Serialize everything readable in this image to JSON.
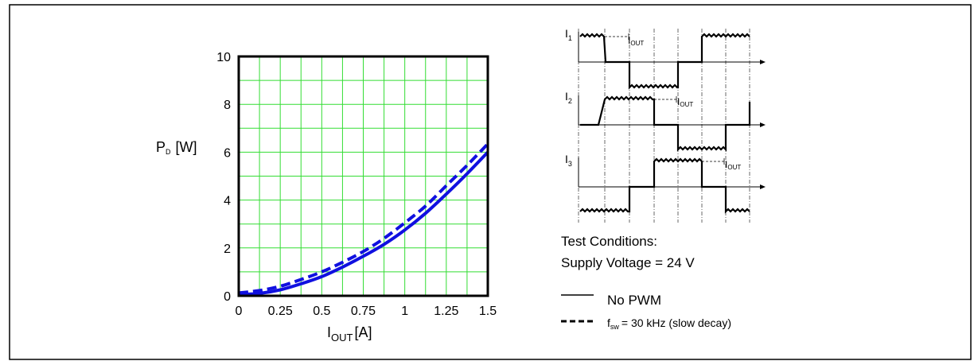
{
  "chart_data": {
    "type": "line",
    "ylabel": {
      "main": "P",
      "sub": "D",
      "unit": "[W]"
    },
    "xlabel": {
      "main": "I",
      "sub": "OUT",
      "unit": "[A]"
    },
    "xlim": [
      0,
      1.5
    ],
    "ylim": [
      0,
      10
    ],
    "x_ticks": [
      "0",
      "0.25",
      "0.5",
      "0.75",
      "1",
      "1.25",
      "1.5"
    ],
    "y_ticks": [
      "0",
      "2",
      "4",
      "6",
      "8",
      "10"
    ],
    "grid": true,
    "series": [
      {
        "name": "No PWM",
        "line_style": "solid",
        "color": "#1010e0",
        "x": [
          0,
          0.125,
          0.25,
          0.375,
          0.5,
          0.625,
          0.75,
          0.875,
          1.0,
          1.125,
          1.25,
          1.375,
          1.5
        ],
        "y": [
          0.05,
          0.1,
          0.25,
          0.5,
          0.8,
          1.2,
          1.65,
          2.15,
          2.75,
          3.45,
          4.25,
          5.1,
          6.0
        ]
      },
      {
        "name": "f_sw = 30 kHz (slow decay)",
        "line_style": "dashed",
        "color": "#1010e0",
        "x": [
          0,
          0.125,
          0.25,
          0.375,
          0.5,
          0.625,
          0.75,
          0.875,
          1.0,
          1.125,
          1.25,
          1.375,
          1.5
        ],
        "y": [
          0.12,
          0.22,
          0.4,
          0.68,
          1.0,
          1.4,
          1.85,
          2.4,
          3.05,
          3.75,
          4.6,
          5.45,
          6.35
        ]
      }
    ]
  },
  "waveform_diagram": {
    "phases": [
      {
        "label_main": "I",
        "label_sub": "1",
        "iout_main": "I",
        "iout_sub": "OUT"
      },
      {
        "label_main": "I",
        "label_sub": "2",
        "iout_main": "I",
        "iout_sub": "OUT"
      },
      {
        "label_main": "I",
        "label_sub": "3",
        "iout_main": "I",
        "iout_sub": "OUT"
      }
    ]
  },
  "conditions": {
    "title": "Test Conditions:",
    "supply": "Supply Voltage = 24 V"
  },
  "legend": {
    "solid_label": "No PWM",
    "dashed_label_main": "f",
    "dashed_label_sub": "sw",
    "dashed_label_rest": "= 30 kHz (slow decay)"
  },
  "colors": {
    "grid": "#33dd33",
    "curve": "#1010e0",
    "frame": "#000000"
  }
}
